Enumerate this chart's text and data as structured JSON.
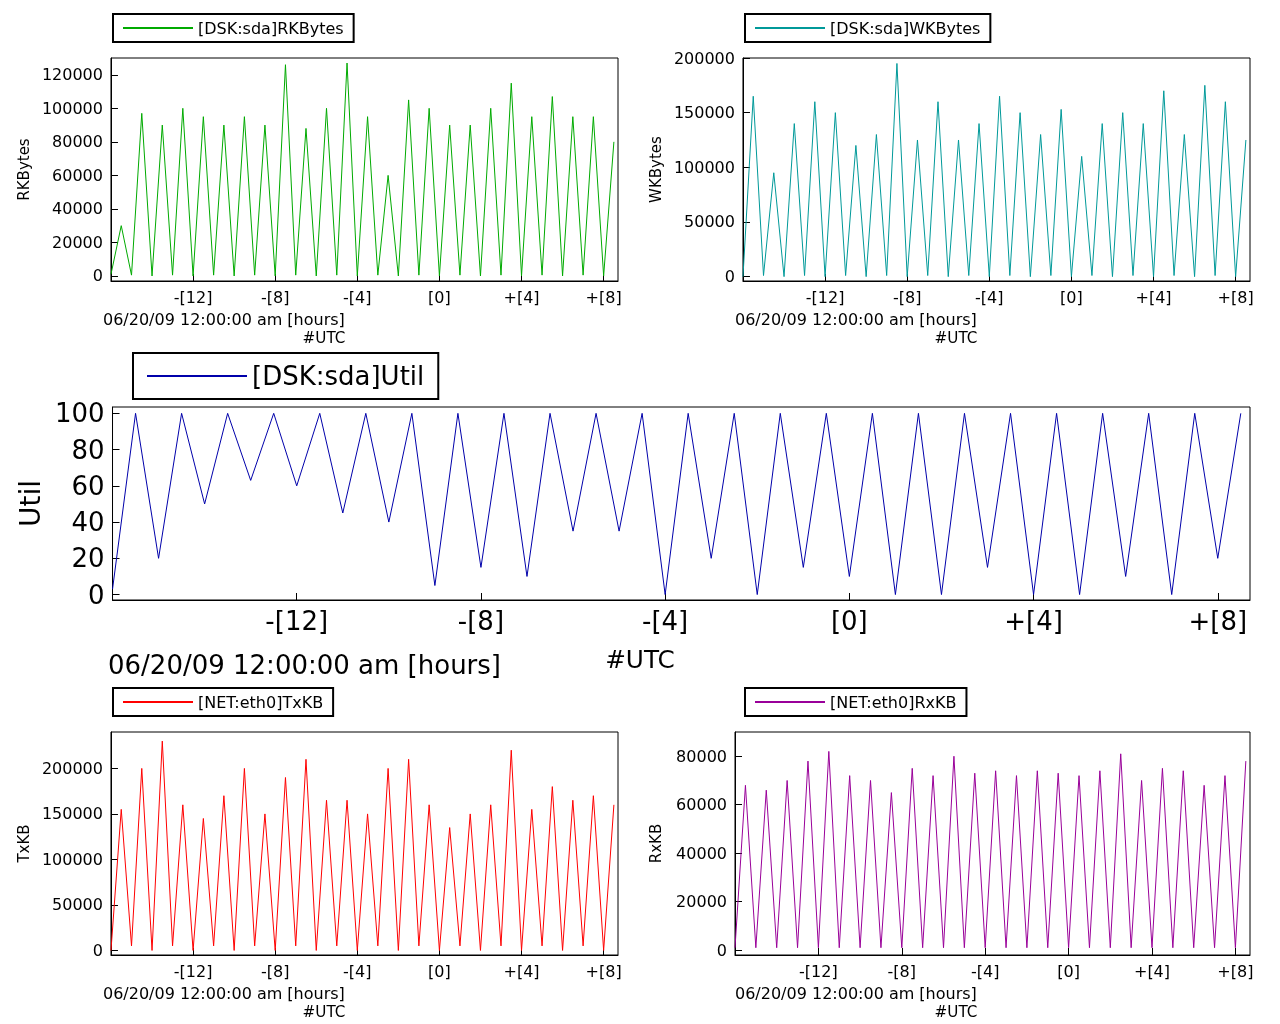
{
  "chart_data": [
    {
      "type": "line",
      "ylabel": "RKBytes",
      "xlabel": "06/20/09 12:00:00 am [hours]",
      "annotations": [
        "#UTC"
      ],
      "legend": "top left",
      "xlim": [
        -16,
        8.7
      ],
      "xticks": [
        {
          "value": -12,
          "label": "-[12]"
        },
        {
          "value": -8,
          "label": "-[8]"
        },
        {
          "value": -4,
          "label": "-[4]"
        },
        {
          "value": 0,
          "label": "[0]"
        },
        {
          "value": 4,
          "label": "+[4]"
        },
        {
          "value": 8,
          "label": "+[8]"
        }
      ],
      "ylim": [
        -3000,
        130000
      ],
      "yticks": [
        0,
        20000,
        40000,
        60000,
        80000,
        100000,
        120000
      ],
      "x": [
        -16,
        -15.5,
        -15,
        -14.5,
        -14,
        -13.5,
        -13,
        -12.5,
        -12,
        -11.5,
        -11,
        -10.5,
        -10,
        -9.5,
        -9,
        -8.5,
        -8,
        -7.5,
        -7,
        -6.5,
        -6,
        -5.5,
        -5,
        -4.5,
        -4,
        -3.5,
        -3,
        -2.5,
        -2,
        -1.5,
        -1,
        -0.5,
        0,
        0.5,
        1,
        1.5,
        2,
        2.5,
        3,
        3.5,
        4,
        4.5,
        5,
        5.5,
        6,
        6.5,
        7,
        7.5,
        8,
        8.5
      ],
      "series": [
        {
          "name": "[DSK:sda]RKBytes",
          "color": "#00aa00",
          "values": [
            1000,
            30000,
            500,
            97000,
            0,
            90000,
            500,
            100000,
            0,
            95000,
            500,
            90000,
            0,
            95000,
            500,
            90000,
            0,
            126000,
            500,
            88000,
            0,
            100000,
            500,
            127000,
            0,
            95000,
            500,
            60000,
            0,
            105000,
            500,
            100000,
            0,
            90000,
            500,
            90000,
            0,
            100000,
            500,
            115000,
            0,
            95000,
            500,
            107000,
            0,
            95000,
            500,
            95000,
            0,
            80000
          ]
        }
      ]
    },
    {
      "type": "line",
      "ylabel": "WKBytes",
      "xlabel": "06/20/09 12:00:00 am [hours]",
      "annotations": [
        "#UTC"
      ],
      "legend": "top left",
      "xlim": [
        -16,
        8.7
      ],
      "xticks": [
        {
          "value": -12,
          "label": "-[12]"
        },
        {
          "value": -8,
          "label": "-[8]"
        },
        {
          "value": -4,
          "label": "-[4]"
        },
        {
          "value": 0,
          "label": "[0]"
        },
        {
          "value": 4,
          "label": "+[4]"
        },
        {
          "value": 8,
          "label": "+[8]"
        }
      ],
      "ylim": [
        -4000,
        200000
      ],
      "yticks": [
        0,
        50000,
        100000,
        150000,
        200000
      ],
      "x": [
        -16,
        -15.5,
        -15,
        -14.5,
        -14,
        -13.5,
        -13,
        -12.5,
        -12,
        -11.5,
        -11,
        -10.5,
        -10,
        -9.5,
        -9,
        -8.5,
        -8,
        -7.5,
        -7,
        -6.5,
        -6,
        -5.5,
        -5,
        -4.5,
        -4,
        -3.5,
        -3,
        -2.5,
        -2,
        -1.5,
        -1,
        -0.5,
        0,
        0.5,
        1,
        1.5,
        2,
        2.5,
        3,
        3.5,
        4,
        4.5,
        5,
        5.5,
        6,
        6.5,
        7,
        7.5,
        8,
        8.5
      ],
      "series": [
        {
          "name": "[DSK:sda]WKBytes",
          "color": "#009999",
          "values": [
            0,
            165000,
            1000,
            95000,
            0,
            140000,
            1000,
            160000,
            0,
            150000,
            1000,
            120000,
            0,
            130000,
            1000,
            195000,
            0,
            125000,
            1000,
            160000,
            0,
            125000,
            1000,
            140000,
            0,
            165000,
            1000,
            150000,
            0,
            130000,
            1000,
            153000,
            0,
            110000,
            1000,
            140000,
            0,
            150000,
            1000,
            140000,
            0,
            170000,
            1000,
            130000,
            0,
            175000,
            1000,
            160000,
            0,
            125000
          ]
        }
      ]
    },
    {
      "type": "line",
      "ylabel": "Util",
      "xlabel": "06/20/09 12:00:00 am [hours]",
      "annotations": [
        "#UTC"
      ],
      "legend": "top left",
      "xlim": [
        -16,
        8.7
      ],
      "xticks": [
        {
          "value": -12,
          "label": "-[12]"
        },
        {
          "value": -8,
          "label": "-[8]"
        },
        {
          "value": -4,
          "label": "-[4]"
        },
        {
          "value": 0,
          "label": "[0]"
        },
        {
          "value": 4,
          "label": "+[4]"
        },
        {
          "value": 8,
          "label": "+[8]"
        }
      ],
      "ylim": [
        -3,
        103.5
      ],
      "yticks": [
        0,
        20,
        40,
        60,
        80,
        100
      ],
      "x": [
        -16,
        -15.5,
        -15,
        -14.5,
        -14,
        -13.5,
        -13,
        -12.5,
        -12,
        -11.5,
        -11,
        -10.5,
        -10,
        -9.5,
        -9,
        -8.5,
        -8,
        -7.5,
        -7,
        -6.5,
        -6,
        -5.5,
        -5,
        -4.5,
        -4,
        -3.5,
        -3,
        -2.5,
        -2,
        -1.5,
        -1,
        -0.5,
        0,
        0.5,
        1,
        1.5,
        2,
        2.5,
        3,
        3.5,
        4,
        4.5,
        5,
        5.5,
        6,
        6.5,
        7,
        7.5,
        8,
        8.5
      ],
      "series": [
        {
          "name": "[DSK:sda]Util",
          "color": "#0000aa",
          "values": [
            3,
            100,
            20,
            100,
            50,
            100,
            63,
            100,
            60,
            100,
            45,
            100,
            40,
            100,
            5,
            100,
            15,
            100,
            10,
            100,
            35,
            100,
            35,
            100,
            0,
            100,
            20,
            100,
            0,
            100,
            15,
            100,
            10,
            100,
            0,
            100,
            0,
            100,
            15,
            100,
            0,
            100,
            0,
            100,
            10,
            100,
            0,
            100,
            20,
            100
          ]
        }
      ]
    },
    {
      "type": "line",
      "ylabel": "TxKB",
      "xlabel": "06/20/09 12:00:00 am [hours]",
      "annotations": [
        "#UTC"
      ],
      "legend": "top left",
      "xlim": [
        -16,
        8.7
      ],
      "xticks": [
        {
          "value": -12,
          "label": "-[12]"
        },
        {
          "value": -8,
          "label": "-[8]"
        },
        {
          "value": -4,
          "label": "-[4]"
        },
        {
          "value": 0,
          "label": "[0]"
        },
        {
          "value": 4,
          "label": "+[4]"
        },
        {
          "value": 8,
          "label": "+[8]"
        }
      ],
      "ylim": [
        -5000,
        240000
      ],
      "yticks": [
        0,
        50000,
        100000,
        150000,
        200000
      ],
      "x": [
        -16,
        -15.5,
        -15,
        -14.5,
        -14,
        -13.5,
        -13,
        -12.5,
        -12,
        -11.5,
        -11,
        -10.5,
        -10,
        -9.5,
        -9,
        -8.5,
        -8,
        -7.5,
        -7,
        -6.5,
        -6,
        -5.5,
        -5,
        -4.5,
        -4,
        -3.5,
        -3,
        -2.5,
        -2,
        -1.5,
        -1,
        -0.5,
        0,
        0.5,
        1,
        1.5,
        2,
        2.5,
        3,
        3.5,
        4,
        4.5,
        5,
        5.5,
        6,
        6.5,
        7,
        7.5,
        8,
        8.5
      ],
      "series": [
        {
          "name": "[NET:eth0]TxKB",
          "color": "#ff0000",
          "values": [
            0,
            155000,
            5000,
            200000,
            0,
            230000,
            5000,
            160000,
            0,
            145000,
            5000,
            170000,
            0,
            200000,
            5000,
            150000,
            0,
            190000,
            5000,
            210000,
            0,
            165000,
            5000,
            165000,
            0,
            150000,
            5000,
            200000,
            0,
            210000,
            5000,
            160000,
            0,
            135000,
            5000,
            150000,
            0,
            160000,
            5000,
            220000,
            0,
            155000,
            5000,
            180000,
            0,
            165000,
            5000,
            170000,
            0,
            160000
          ]
        }
      ]
    },
    {
      "type": "line",
      "ylabel": "RxKB",
      "xlabel": "06/20/09 12:00:00 am [hours]",
      "annotations": [
        "#UTC"
      ],
      "legend": "top left",
      "xlim": [
        -16,
        8.7
      ],
      "xticks": [
        {
          "value": -12,
          "label": "-[12]"
        },
        {
          "value": -8,
          "label": "-[8]"
        },
        {
          "value": -4,
          "label": "-[4]"
        },
        {
          "value": 0,
          "label": "[0]"
        },
        {
          "value": 4,
          "label": "+[4]"
        },
        {
          "value": 8,
          "label": "+[8]"
        }
      ],
      "ylim": [
        -2000,
        90000
      ],
      "yticks": [
        0,
        20000,
        40000,
        60000,
        80000
      ],
      "x": [
        -16,
        -15.5,
        -15,
        -14.5,
        -14,
        -13.5,
        -13,
        -12.5,
        -12,
        -11.5,
        -11,
        -10.5,
        -10,
        -9.5,
        -9,
        -8.5,
        -8,
        -7.5,
        -7,
        -6.5,
        -6,
        -5.5,
        -5,
        -4.5,
        -4,
        -3.5,
        -3,
        -2.5,
        -2,
        -1.5,
        -1,
        -0.5,
        0,
        0.5,
        1,
        1.5,
        2,
        2.5,
        3,
        3.5,
        4,
        4.5,
        5,
        5.5,
        6,
        6.5,
        7,
        7.5,
        8,
        8.5
      ],
      "series": [
        {
          "name": "[NET:eth0]RxKB",
          "color": "#990099",
          "values": [
            1000,
            68000,
            1000,
            66000,
            1000,
            70000,
            1000,
            78000,
            1000,
            82000,
            1000,
            72000,
            1000,
            70000,
            1000,
            65000,
            1000,
            75000,
            1000,
            72000,
            1000,
            80000,
            1000,
            73000,
            1000,
            74000,
            1000,
            72000,
            1000,
            74000,
            1000,
            73000,
            1000,
            72000,
            1000,
            74000,
            1000,
            81000,
            1000,
            70000,
            1000,
            75000,
            1000,
            74000,
            1000,
            68000,
            1000,
            72000,
            1000,
            78000
          ]
        }
      ]
    }
  ]
}
